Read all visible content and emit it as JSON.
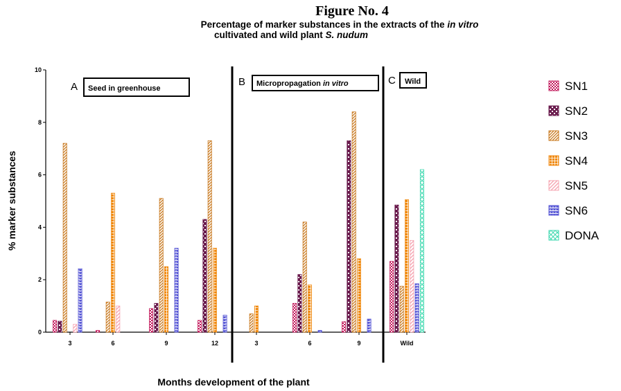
{
  "figure_label": "Figure No. 4",
  "colors": {
    "SN1": "#c2185b",
    "SN2": "#6a1b4d",
    "SN3": "#c8781e",
    "SN4": "#f08a10",
    "SN5": "#f6a6b2",
    "SN6": "#5b5bd6",
    "DONA": "#3fd9b0"
  },
  "chart_data": {
    "type": "bar",
    "title_parts": {
      "line1_a": "Percentage of marker substances in the extracts of the ",
      "line1_b": "in vitro",
      "line2_a": "cultivated and wild plant ",
      "line2_b": "S. nudum"
    },
    "xlabel": "Months development of the plant",
    "ylabel": "% marker substances",
    "ylim": [
      0,
      10
    ],
    "yticks": [
      0,
      2,
      4,
      6,
      8,
      10
    ],
    "legend_position": "right",
    "series_names": [
      "SN1",
      "SN2",
      "SN3",
      "SN4",
      "SN5",
      "SN6",
      "DONA"
    ],
    "panels": [
      {
        "letter": "A",
        "label_parts": [
          "Seed in greenhouse"
        ],
        "groups": [
          {
            "category": "3",
            "values": [
              0.45,
              0.42,
              7.2,
              0,
              0.3,
              2.42,
              0
            ]
          },
          {
            "category": "6",
            "values": [
              0.07,
              0,
              1.15,
              5.3,
              1.0,
              0,
              0
            ]
          },
          {
            "category": "9",
            "values": [
              0.9,
              1.1,
              5.1,
              2.5,
              0,
              3.2,
              0
            ]
          },
          {
            "category": "12",
            "values": [
              0.45,
              4.3,
              7.3,
              3.2,
              0,
              0.65,
              0
            ]
          }
        ]
      },
      {
        "letter": "B",
        "label_parts": [
          "Micropropagation ",
          "in vitro"
        ],
        "groups": [
          {
            "category": "3",
            "values": [
              0,
              0,
              0.7,
              1.0,
              0,
              0,
              0
            ]
          },
          {
            "category": "6",
            "values": [
              1.1,
              2.2,
              4.2,
              1.8,
              0,
              0.07,
              0
            ]
          },
          {
            "category": "9",
            "values": [
              0.4,
              7.3,
              8.4,
              2.8,
              0,
              0.5,
              0
            ]
          }
        ]
      },
      {
        "letter": "C",
        "label_parts": [
          "Wild"
        ],
        "groups": [
          {
            "category": "Wild",
            "values": [
              2.7,
              4.85,
              1.75,
              5.05,
              3.5,
              1.85,
              6.2
            ]
          }
        ]
      }
    ]
  }
}
